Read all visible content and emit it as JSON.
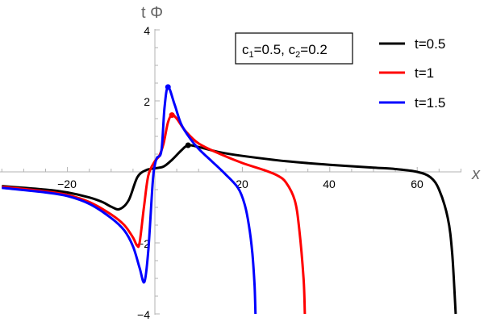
{
  "chart_data": {
    "type": "line",
    "title": "",
    "xlabel": "x",
    "ylabel": "t Φ",
    "xlim": [
      -35,
      70
    ],
    "ylim": [
      -4,
      4
    ],
    "x_ticks": [
      -20,
      20,
      40,
      60
    ],
    "y_ticks": [
      -4,
      -2,
      2,
      4
    ],
    "grid": false,
    "annotation": "c1=0.5, c2=0.2",
    "legend_position": "top-right",
    "series": [
      {
        "name": "t=0.5",
        "color": "#000000",
        "x": [
          -35,
          -25,
          -20,
          -15,
          -12,
          -10,
          -8.1,
          -6,
          -4,
          -2,
          0,
          2,
          4,
          6,
          7.6,
          10,
          15,
          20,
          30,
          40,
          50,
          55,
          60,
          63,
          65,
          67,
          68,
          68.8
        ],
        "y": [
          -0.4,
          -0.5,
          -0.58,
          -0.72,
          -0.85,
          -0.98,
          -1.05,
          -0.8,
          -0.15,
          0.05,
          0.1,
          0.15,
          0.35,
          0.6,
          0.75,
          0.7,
          0.55,
          0.45,
          0.3,
          0.2,
          0.12,
          0.08,
          0.0,
          -0.15,
          -0.5,
          -1.3,
          -2.3,
          -4.0
        ],
        "markers": [
          {
            "x": 7.6,
            "y": 0.75
          }
        ]
      },
      {
        "name": "t=1",
        "color": "#ff0000",
        "x": [
          -35,
          -25,
          -20,
          -15,
          -10,
          -7,
          -5,
          -4.1,
          -3.5,
          -2.5,
          -1.5,
          0,
          1,
          2,
          3,
          3.9,
          5,
          7,
          10,
          15,
          20,
          25,
          28,
          30,
          32,
          33,
          34,
          34.3
        ],
        "y": [
          -0.42,
          -0.55,
          -0.65,
          -0.85,
          -1.2,
          -1.5,
          -1.85,
          -2.07,
          -2.0,
          -1.0,
          -0.1,
          0.3,
          0.45,
          0.8,
          1.4,
          1.6,
          1.5,
          1.15,
          0.8,
          0.5,
          0.25,
          0.05,
          -0.1,
          -0.3,
          -0.8,
          -1.6,
          -3.0,
          -4.0
        ],
        "markers": [
          {
            "x": 3.9,
            "y": 1.6
          }
        ]
      },
      {
        "name": "t=1.5",
        "color": "#0000ff",
        "x": [
          -35,
          -25,
          -20,
          -15,
          -10,
          -7,
          -5,
          -3.5,
          -2.4,
          -1.5,
          -0.5,
          0,
          0.5,
          1.5,
          2.2,
          3.0,
          4.5,
          6,
          8,
          10,
          13,
          16,
          19,
          20.5,
          21.5,
          22.3,
          22.8,
          23.0
        ],
        "y": [
          -0.45,
          -0.58,
          -0.68,
          -0.9,
          -1.3,
          -1.65,
          -2.1,
          -2.7,
          -3.1,
          -2.2,
          -0.3,
          0.2,
          0.4,
          0.6,
          1.8,
          2.39,
          1.9,
          1.35,
          0.95,
          0.65,
          0.3,
          -0.05,
          -0.45,
          -0.9,
          -1.5,
          -2.3,
          -3.2,
          -4.0
        ],
        "markers": [
          {
            "x": 3.0,
            "y": 2.39
          }
        ]
      }
    ]
  },
  "axes": {
    "x_label": "x",
    "y_label": "t Φ",
    "x_tick_labels": [
      "−20",
      "20",
      "40",
      "60"
    ],
    "y_tick_labels": [
      "4",
      "2",
      "−2",
      "−4"
    ]
  },
  "annotation_box": {
    "c1_prefix": "c",
    "c1_sub": "1",
    "c1_value": "=0.5, ",
    "c2_prefix": "c",
    "c2_sub": "2",
    "c2_value": "=0.2"
  },
  "legend": {
    "items": [
      {
        "label": "t=0.5",
        "color": "#000000"
      },
      {
        "label": "t=1",
        "color": "#ff0000"
      },
      {
        "label": "t=1.5",
        "color": "#0000ff"
      }
    ]
  }
}
